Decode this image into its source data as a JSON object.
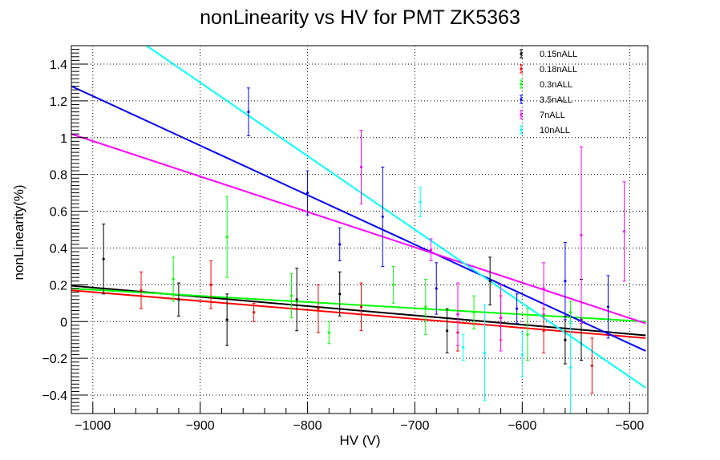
{
  "chart_data": {
    "type": "scatter",
    "title": "nonLinearity vs HV for PMT ZK5363",
    "xlabel": "HV (V)",
    "ylabel": "nonLinearity(%)",
    "xlim": [
      -1020,
      -483
    ],
    "ylim": [
      -0.5,
      1.5
    ],
    "x_ticks": [
      -1000,
      -900,
      -800,
      -700,
      -600,
      -500
    ],
    "y_ticks": [
      -0.4,
      -0.2,
      0,
      0.2,
      0.4,
      0.6,
      0.8,
      1,
      1.2,
      1.4
    ],
    "x_tick_labels": [
      "−1000",
      "−900",
      "−800",
      "−700",
      "−600",
      "−500"
    ],
    "y_tick_labels": [
      "−0.4",
      "−0.2",
      "0",
      "0.2",
      "0.4",
      "0.6",
      "0.8",
      "1",
      "1.2",
      "1.4"
    ],
    "grid": true,
    "legend_position": "top-right",
    "series": [
      {
        "name": "0.15nALL",
        "color": "#000000",
        "points": [
          {
            "x": -990,
            "y": 0.34,
            "err": 0.19
          },
          {
            "x": -920,
            "y": 0.12,
            "err": 0.09
          },
          {
            "x": -875,
            "y": 0.01,
            "err": 0.14
          },
          {
            "x": -810,
            "y": 0.12,
            "err": 0.17
          },
          {
            "x": -770,
            "y": 0.15,
            "err": 0.12
          },
          {
            "x": -670,
            "y": -0.05,
            "err": 0.12
          },
          {
            "x": -630,
            "y": 0.22,
            "err": 0.13
          },
          {
            "x": -560,
            "y": -0.1,
            "err": 0.13
          },
          {
            "x": -545,
            "y": 0.01,
            "err": 0.22
          }
        ],
        "fit": {
          "x": [
            -1020,
            -485
          ],
          "y": [
            0.195,
            -0.075
          ]
        }
      },
      {
        "name": "0.18nALL",
        "color": "#ff0000",
        "points": [
          {
            "x": -955,
            "y": 0.17,
            "err": 0.1
          },
          {
            "x": -890,
            "y": 0.2,
            "err": 0.13
          },
          {
            "x": -850,
            "y": 0.05,
            "err": 0.05
          },
          {
            "x": -790,
            "y": 0.07,
            "err": 0.13
          },
          {
            "x": -750,
            "y": 0.08,
            "err": 0.13
          },
          {
            "x": -660,
            "y": -0.06,
            "err": 0.1
          },
          {
            "x": -620,
            "y": 0.02,
            "err": 0.12
          },
          {
            "x": -580,
            "y": -0.05,
            "err": 0.12
          },
          {
            "x": -535,
            "y": -0.24,
            "err": 0.15
          }
        ],
        "fit": {
          "x": [
            -1020,
            -485
          ],
          "y": [
            0.17,
            -0.09
          ]
        }
      },
      {
        "name": "0.3nALL",
        "color": "#00ff00",
        "points": [
          {
            "x": -925,
            "y": 0.23,
            "err": 0.12
          },
          {
            "x": -875,
            "y": 0.46,
            "err": 0.22
          },
          {
            "x": -815,
            "y": 0.14,
            "err": 0.12
          },
          {
            "x": -780,
            "y": -0.06,
            "err": 0.06
          },
          {
            "x": -720,
            "y": 0.2,
            "err": 0.1
          },
          {
            "x": -690,
            "y": 0.08,
            "err": 0.15
          },
          {
            "x": -645,
            "y": 0.05,
            "err": 0.09
          },
          {
            "x": -595,
            "y": -0.07,
            "err": 0.14
          },
          {
            "x": -555,
            "y": 0.05,
            "err": 0.06
          }
        ],
        "fit": {
          "x": [
            -1020,
            -485
          ],
          "y": [
            0.18,
            0.0
          ]
        }
      },
      {
        "name": "3.5nALL",
        "color": "#0000ff",
        "points": [
          {
            "x": -855,
            "y": 1.14,
            "err": 0.13
          },
          {
            "x": -800,
            "y": 0.7,
            "err": 0.12
          },
          {
            "x": -770,
            "y": 0.42,
            "err": 0.09
          },
          {
            "x": -730,
            "y": 0.57,
            "err": 0.27
          },
          {
            "x": -680,
            "y": 0.18,
            "err": 0.14
          },
          {
            "x": -605,
            "y": 0.07,
            "err": 0.08
          },
          {
            "x": -560,
            "y": 0.22,
            "err": 0.21
          },
          {
            "x": -520,
            "y": 0.08,
            "err": 0.17
          }
        ],
        "fit": {
          "x": [
            -1020,
            -485
          ],
          "y": [
            1.28,
            -0.16
          ]
        }
      },
      {
        "name": "7nALL",
        "color": "#ff00ff",
        "points": [
          {
            "x": -750,
            "y": 0.84,
            "err": 0.2
          },
          {
            "x": -685,
            "y": 0.39,
            "err": 0.06
          },
          {
            "x": -660,
            "y": 0.04,
            "err": 0.17
          },
          {
            "x": -620,
            "y": 0.02,
            "err": 0.18
          },
          {
            "x": -580,
            "y": 0.18,
            "err": 0.14
          },
          {
            "x": -545,
            "y": 0.47,
            "err": 0.48
          },
          {
            "x": -505,
            "y": 0.49,
            "err": 0.27
          }
        ],
        "fit": {
          "x": [
            -1020,
            -485
          ],
          "y": [
            1.02,
            -0.01
          ]
        }
      },
      {
        "name": "10nALL",
        "color": "#00ffff",
        "points": [
          {
            "x": -695,
            "y": 0.65,
            "err": 0.08
          },
          {
            "x": -655,
            "y": -0.14,
            "err": 0.07
          },
          {
            "x": -635,
            "y": -0.17,
            "err": 0.26
          },
          {
            "x": -600,
            "y": -0.18,
            "err": 0.12
          },
          {
            "x": -555,
            "y": -0.25,
            "err": 0.25
          }
        ],
        "fit": {
          "x": [
            -950,
            -485
          ],
          "y": [
            1.5,
            -0.36
          ]
        }
      }
    ]
  }
}
